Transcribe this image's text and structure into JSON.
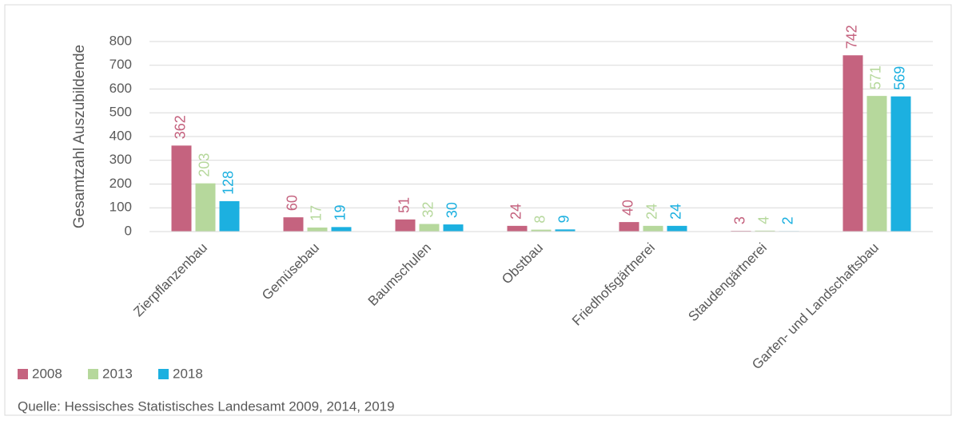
{
  "chart_data": {
    "type": "bar",
    "y_label": "Gesamtzahl Auszubildende",
    "source": "Quelle: Hessisches Statistisches Landesamt 2009, 2014, 2019",
    "categories": [
      "Zierpflanzenbau",
      "Gemüsebau",
      "Baumschulen",
      "Obstbau",
      "Friedhofsgärtnerei",
      "Staudengärtnerei",
      "Garten- und Landschaftsbau"
    ],
    "series": [
      {
        "name": "2008",
        "color": "#c5637f",
        "values": [
          362,
          60,
          51,
          24,
          40,
          3,
          742
        ]
      },
      {
        "name": "2013",
        "color": "#b6d89c",
        "values": [
          203,
          17,
          32,
          8,
          24,
          4,
          571
        ]
      },
      {
        "name": "2018",
        "color": "#1cb0e0",
        "values": [
          128,
          19,
          30,
          9,
          24,
          2,
          569
        ]
      }
    ],
    "ylim": [
      0,
      800
    ],
    "yticks": [
      0,
      100,
      200,
      300,
      400,
      500,
      600,
      700,
      800
    ],
    "grid": true,
    "legend": "bottom-left"
  }
}
